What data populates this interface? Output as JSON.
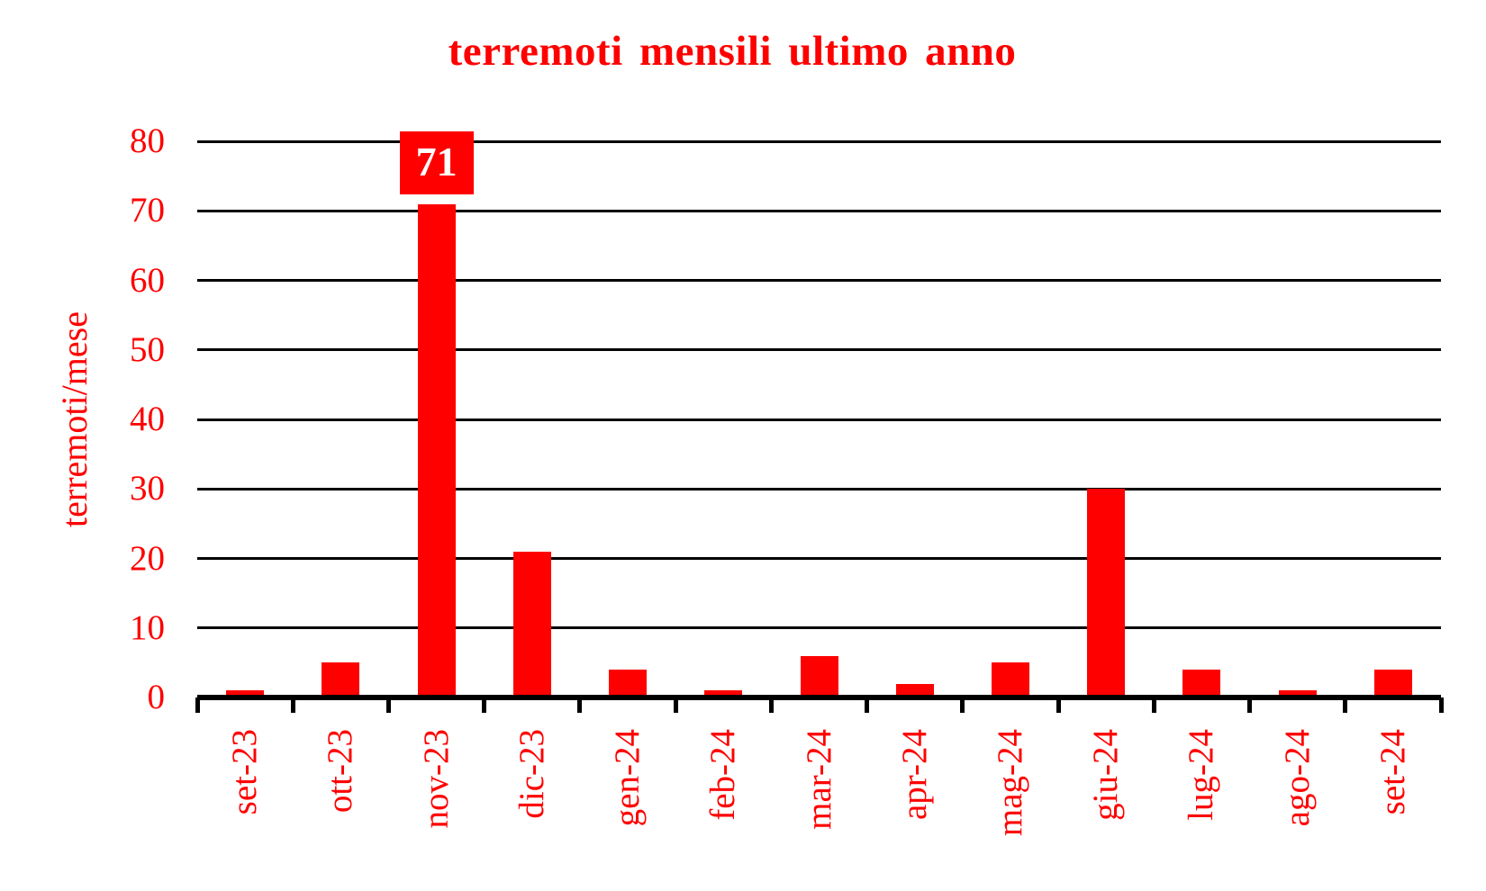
{
  "chart_data": {
    "type": "bar",
    "title": "terremoti mensili ultimo anno",
    "ylabel": "terremoti/mese",
    "xlabel": "",
    "categories": [
      "set-23",
      "ott-23",
      "nov-23",
      "dic-23",
      "gen-24",
      "feb-24",
      "mar-24",
      "apr-24",
      "mag-24",
      "giu-24",
      "lug-24",
      "ago-24",
      "set-24"
    ],
    "values": [
      1,
      5,
      71,
      21,
      4,
      1,
      6,
      2,
      5,
      30,
      4,
      1,
      4
    ],
    "ylim": [
      0,
      80
    ],
    "yticks": [
      0,
      10,
      20,
      30,
      40,
      50,
      60,
      70,
      80
    ],
    "grid": "horizontal",
    "legend": "none",
    "annotation": {
      "category": "nov-23",
      "label": "71",
      "bg_color": "#ff0000",
      "text_color": "#ffffff"
    },
    "colors": {
      "bar": "#ff0000",
      "text": "#ff0000",
      "grid": "#000000",
      "axis": "#000000",
      "background": "#ffffff"
    }
  }
}
